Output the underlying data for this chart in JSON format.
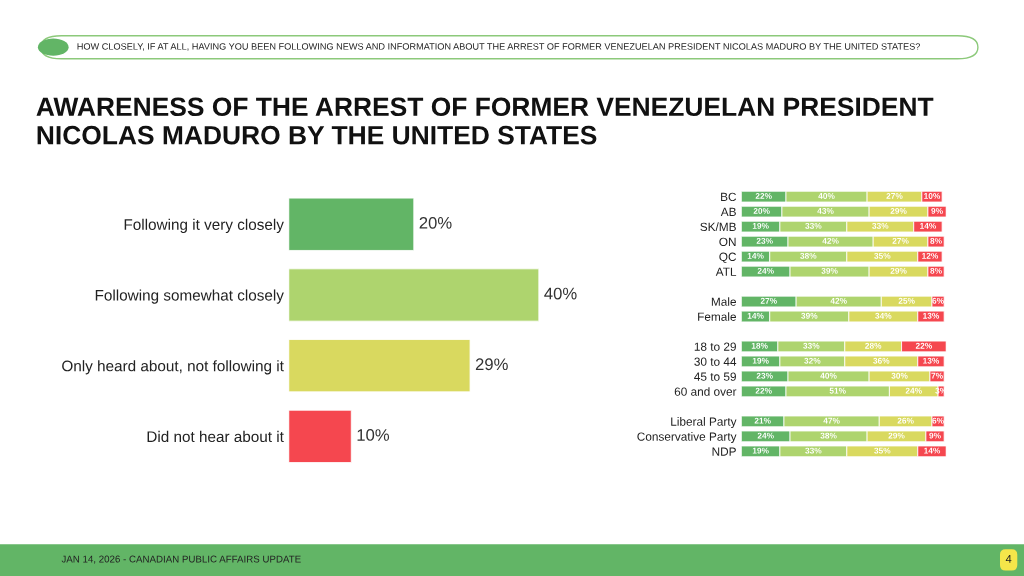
{
  "chart_data": [
    {
      "type": "bar",
      "orientation": "horizontal",
      "title": "AWARENESS OF THE ARREST OF FORMER VENEZUELAN PRESIDENT NICOLAS MADURO BY THE UNITED STATES",
      "subtitle": "HOW CLOSELY, IF AT ALL, HAVING YOU BEEN FOLLOWING NEWS AND INFORMATION ABOUT THE ARREST OF FORMER VENEZUELAN PRESIDENT NICOLAS MADURO BY THE UNITED STATES?",
      "categories": [
        "Following it very closely",
        "Following somewhat closely",
        "Only heard about, not following it",
        "Did not hear about it"
      ],
      "values": [
        20,
        40,
        29,
        10
      ],
      "value_labels": [
        "20%",
        "40%",
        "29%",
        "10%"
      ],
      "colors": [
        "#62b566",
        "#aed46e",
        "#d9d95f",
        "#f5474f"
      ],
      "tick_labels": "y",
      "grid": false,
      "legend": false
    },
    {
      "type": "bar",
      "orientation": "horizontal",
      "stacked": true,
      "categories": [
        "BC",
        "AB",
        "SK/MB",
        "ON",
        "QC",
        "ATL",
        null,
        "Male",
        "Female",
        null,
        "18 to 29",
        "30 to 44",
        "45 to 59",
        "60 and over",
        null,
        "Liberal Party",
        "Conservative Party",
        "NDP"
      ],
      "series": [
        {
          "color": "#62b566",
          "values": [
            22,
            20,
            19,
            23,
            14,
            24,
            null,
            27,
            14,
            null,
            18,
            19,
            23,
            22,
            null,
            21,
            24,
            19
          ],
          "value_labels": [
            "22%",
            "20%",
            "19%",
            "23%",
            "14%",
            "24%",
            null,
            "27%",
            "14%",
            null,
            "18%",
            "19%",
            "23%",
            "22%",
            null,
            "21%",
            "24%",
            "19%"
          ]
        },
        {
          "color": "#aed46e",
          "values": [
            40,
            43,
            33,
            42,
            38,
            39,
            null,
            42,
            39,
            null,
            33,
            32,
            40,
            51,
            null,
            47,
            38,
            33
          ],
          "value_labels": [
            "40%",
            "43%",
            "33%",
            "42%",
            "38%",
            "39%",
            null,
            "42%",
            "39%",
            null,
            "33%",
            "32%",
            "40%",
            "51%",
            null,
            "47%",
            "38%",
            "33%"
          ]
        },
        {
          "color": "#d9d95f",
          "values": [
            27,
            29,
            33,
            27,
            35,
            29,
            null,
            25,
            34,
            null,
            28,
            36,
            30,
            24,
            null,
            26,
            29,
            35
          ],
          "value_labels": [
            "27%",
            "29%",
            "33%",
            "27%",
            "35%",
            "29%",
            null,
            "25%",
            "34%",
            null,
            "28%",
            "36%",
            "30%",
            "24%",
            null,
            "26%",
            "29%",
            "35%"
          ]
        },
        {
          "color": "#f5474f",
          "values": [
            10,
            9,
            14,
            8,
            12,
            8,
            null,
            6,
            13,
            null,
            22,
            13,
            7,
            3,
            null,
            6,
            9,
            14
          ],
          "value_labels": [
            "10%",
            "9%",
            "14%",
            "8%",
            "12%",
            "8%",
            null,
            "6%",
            "13%",
            null,
            "22%",
            "13%",
            "7%",
            "3%",
            null,
            "6%",
            "9%",
            "14%"
          ]
        }
      ],
      "annotations": [
        "JAN 14, 2026 - CANADIAN PUBLIC AFFAIRS UPDATE",
        "4"
      ],
      "tick_labels": "y",
      "grid": false,
      "legend": false
    }
  ]
}
